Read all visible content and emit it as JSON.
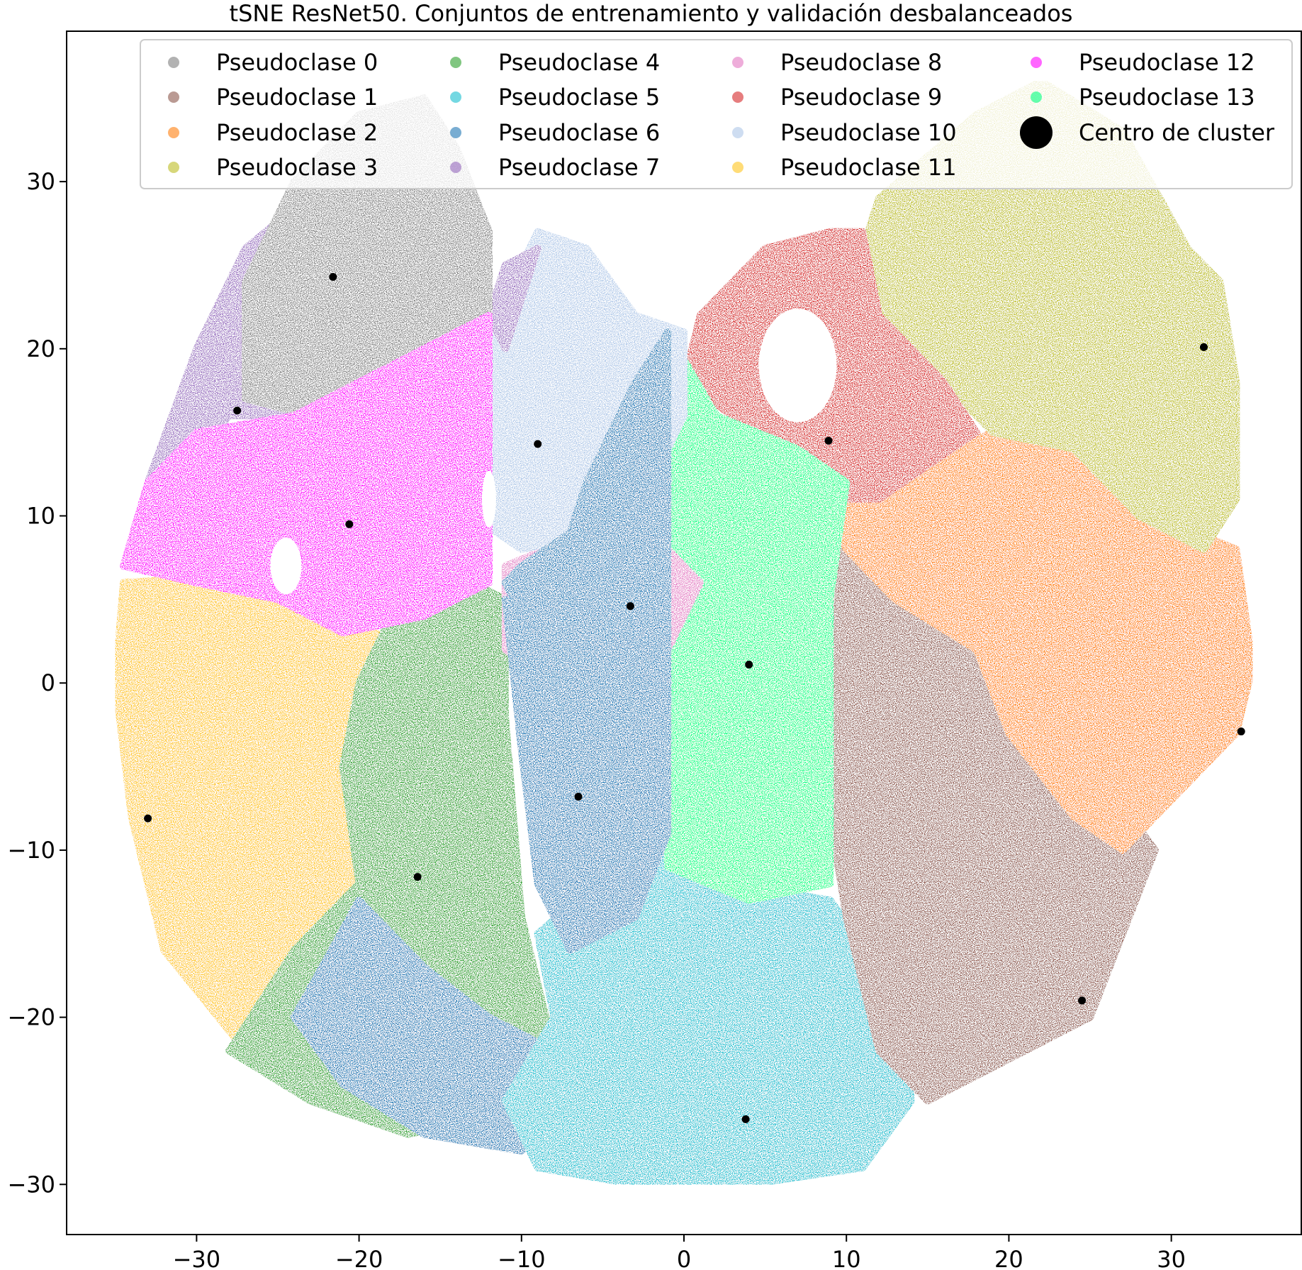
{
  "chart_data": {
    "type": "scatter",
    "title": "tSNE ResNet50. Conjuntos de entrenamiento y validación desbalanceados",
    "xlabel": "",
    "ylabel": "",
    "xlim": [
      -38,
      38
    ],
    "ylim": [
      -33,
      39
    ],
    "xticks": [
      -30,
      -20,
      -10,
      0,
      10,
      20,
      30
    ],
    "yticks": [
      -30,
      -20,
      -10,
      0,
      10,
      20,
      30
    ],
    "xtick_labels": [
      "−30",
      "−20",
      "−10",
      "0",
      "10",
      "20",
      "30"
    ],
    "ytick_labels": [
      "−30",
      "−20",
      "−10",
      "0",
      "10",
      "20",
      "30"
    ],
    "grid": false,
    "legend_placement": "top",
    "series": [
      {
        "name": "Pseudoclase 0",
        "color": "#7f7f7f",
        "center": [
          -21.6,
          24.3
        ]
      },
      {
        "name": "Pseudoclase 1",
        "color": "#8c564b",
        "center": [
          24.5,
          -19.0
        ]
      },
      {
        "name": "Pseudoclase 2",
        "color": "#ff7f0e",
        "center": [
          34.3,
          -2.9
        ]
      },
      {
        "name": "Pseudoclase 3",
        "color": "#bcbd22",
        "center": [
          32.0,
          20.1
        ]
      },
      {
        "name": "Pseudoclase 4",
        "color": "#2ca02c",
        "center": [
          -16.4,
          -11.6
        ]
      },
      {
        "name": "Pseudoclase 5",
        "color": "#17becf",
        "center": [
          3.8,
          -26.1
        ]
      },
      {
        "name": "Pseudoclase 6",
        "color": "#1f77b4",
        "center": [
          -6.5,
          -6.8
        ]
      },
      {
        "name": "Pseudoclase 7",
        "color": "#9467bd",
        "center": [
          -27.5,
          16.3
        ]
      },
      {
        "name": "Pseudoclase 8",
        "color": "#e377c2",
        "center": [
          -3.3,
          4.6
        ]
      },
      {
        "name": "Pseudoclase 9",
        "color": "#d62728",
        "center": [
          8.9,
          14.5
        ]
      },
      {
        "name": "Pseudoclase 10",
        "color": "#aec7e8",
        "center": [
          -9.0,
          14.3
        ]
      },
      {
        "name": "Pseudoclase 11",
        "color": "#ffc41c",
        "center": [
          -33.0,
          -8.1
        ]
      },
      {
        "name": "Pseudoclase 12",
        "color": "#ff00ff",
        "center": [
          -20.6,
          9.5
        ]
      },
      {
        "name": "Pseudoclase 13",
        "color": "#00ff7f",
        "center": [
          4.0,
          1.1
        ]
      }
    ],
    "center_marker_label": "Centro de cluster",
    "center_marker_color": "#000000"
  }
}
